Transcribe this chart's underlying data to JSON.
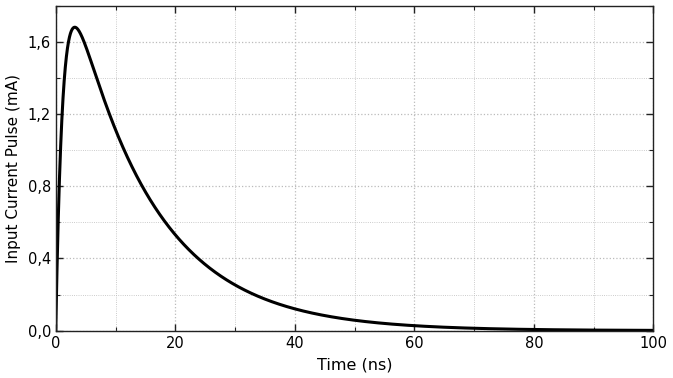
{
  "title": "",
  "xlabel": "Time (ns)",
  "ylabel": "Input Current Pulse (mA)",
  "xlim": [
    0,
    100
  ],
  "ylim": [
    0.0,
    1.8
  ],
  "xticks": [
    0,
    20,
    40,
    60,
    80,
    100
  ],
  "yticks": [
    0.0,
    0.4,
    0.8,
    1.2,
    1.6
  ],
  "ytick_labels": [
    "0,0",
    "0,4",
    "0,8",
    "1,2",
    "1,6"
  ],
  "xtick_labels": [
    "0",
    "20",
    "40",
    "60",
    "80",
    "100"
  ],
  "line_color": "#000000",
  "line_width": 2.2,
  "grid_color": "#bbbbbb",
  "grid_style": "dotted",
  "background_color": "#ffffff",
  "peak_time": 4.0,
  "peak_value": 1.68,
  "rise_tau": 1.2,
  "fall_tau": 13.5
}
